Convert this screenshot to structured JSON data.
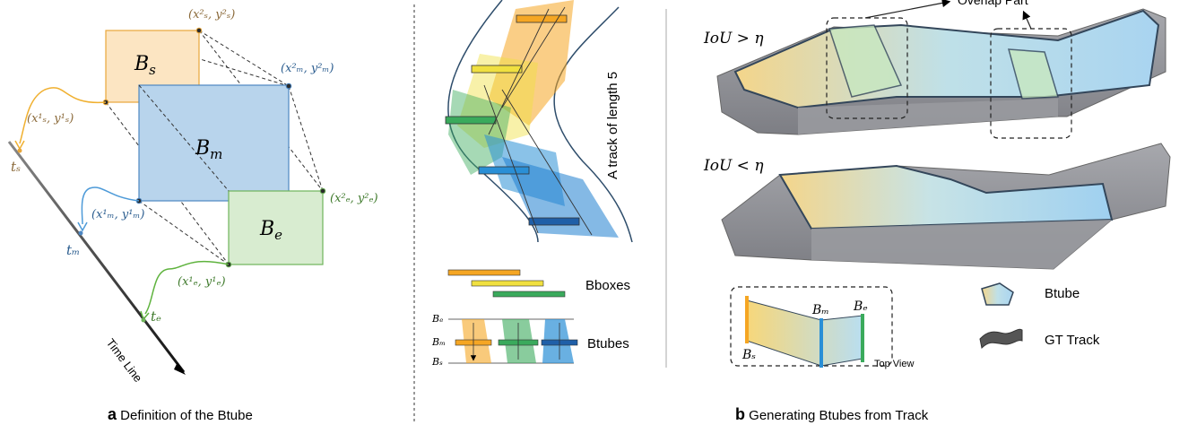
{
  "panel_a": {
    "caption_letter": "a",
    "caption_text": " Definition of the Btube",
    "boxes": {
      "s": {
        "base": "B",
        "sub": "s",
        "color": "#fce5c2",
        "stroke": "#e8a63a"
      },
      "m": {
        "base": "B",
        "sub": "m",
        "color": "#b8d4ec",
        "stroke": "#4d87c2"
      },
      "e": {
        "base": "B",
        "sub": "e",
        "color": "#d8ecd0",
        "stroke": "#6fb35a"
      }
    },
    "corner_labels": {
      "s2": "(x²ₛ, y²ₛ)",
      "m2": "(x²ₘ, y²ₘ)",
      "s1": "(x¹ₛ, y¹ₛ)",
      "m1": "(x¹ₘ, y¹ₘ)",
      "e2": "(x²ₑ, y²ₑ)",
      "e1": "(x¹ₑ, y¹ₑ)"
    },
    "time_labels": {
      "ts": "tₛ",
      "tm": "tₘ",
      "te": "tₑ"
    },
    "timeline_label": "Time Line"
  },
  "panel_b": {
    "caption_letter": "b",
    "caption_text": " Generating Btubes from Track",
    "track_label": "A track of length 5",
    "legend_bboxes": "Bboxes",
    "legend_btubes": "Btubes",
    "btube_side_labels": [
      "Bₑ",
      "Bₘ",
      "Bₛ"
    ],
    "iou_gt": "IoU > η",
    "iou_lt": "IoU < η",
    "overlap_label": "Overlap Part",
    "top_view": {
      "title": "Top View",
      "bs": "Bₛ",
      "bm": "Bₘ",
      "be": "Bₑ"
    },
    "legend_btube": "Btube",
    "legend_gt": "GT Track"
  },
  "colors": {
    "orange": "#f5a623",
    "yellow": "#f0e040",
    "green": "#3aaa5c",
    "blue": "#2a8fd6",
    "dark_blue": "#1f5fa8",
    "gray": "#8e8e94",
    "outline": "#33465a"
  }
}
